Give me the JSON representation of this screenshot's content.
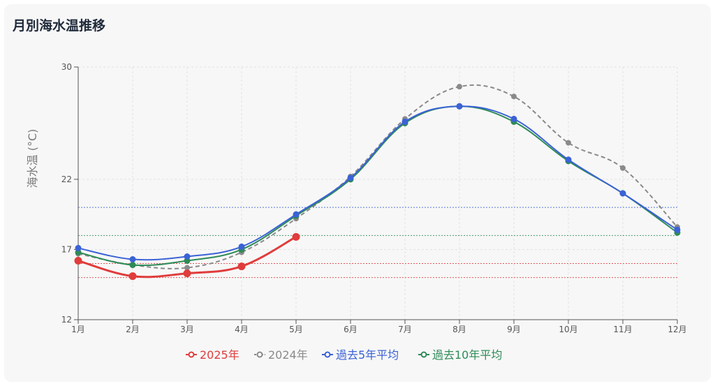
{
  "page": {
    "title": "月別海水温推移"
  },
  "chart_data": {
    "type": "line",
    "title": "月別海水温推移",
    "ylabel": "海水温 (°C)",
    "xlabel": "",
    "categories": [
      "1月",
      "2月",
      "3月",
      "4月",
      "5月",
      "6月",
      "7月",
      "8月",
      "9月",
      "10月",
      "11月",
      "12月"
    ],
    "yticks": [
      12,
      17,
      22,
      30
    ],
    "ylim": [
      12,
      30
    ],
    "grid": true,
    "legend_position": "bottom",
    "series": [
      {
        "name": "2025年",
        "color": "#e03c3c",
        "style": "solid-thick",
        "values": [
          16.2,
          15.1,
          15.3,
          15.8,
          17.9,
          null,
          null,
          null,
          null,
          null,
          null,
          null
        ],
        "ref_lines": [
          15.0,
          16.0
        ]
      },
      {
        "name": "2024年",
        "color": "#8a8a8a",
        "style": "dashed",
        "values": [
          16.7,
          15.9,
          15.7,
          16.8,
          19.2,
          22.2,
          26.3,
          28.6,
          27.9,
          24.6,
          22.8,
          18.6
        ],
        "ref_lines": []
      },
      {
        "name": "過去5年平均",
        "color": "#3b62d6",
        "style": "solid",
        "values": [
          17.1,
          16.3,
          16.5,
          17.2,
          19.5,
          22.1,
          26.1,
          27.2,
          26.3,
          23.4,
          21.0,
          18.4
        ],
        "ref_lines": [
          20.0
        ]
      },
      {
        "name": "過去10年平均",
        "color": "#2e8b57",
        "style": "solid",
        "values": [
          16.8,
          15.9,
          16.2,
          17.0,
          19.4,
          22.0,
          26.0,
          27.2,
          26.1,
          23.3,
          21.0,
          18.2
        ],
        "ref_lines": [
          18.0
        ]
      }
    ]
  }
}
